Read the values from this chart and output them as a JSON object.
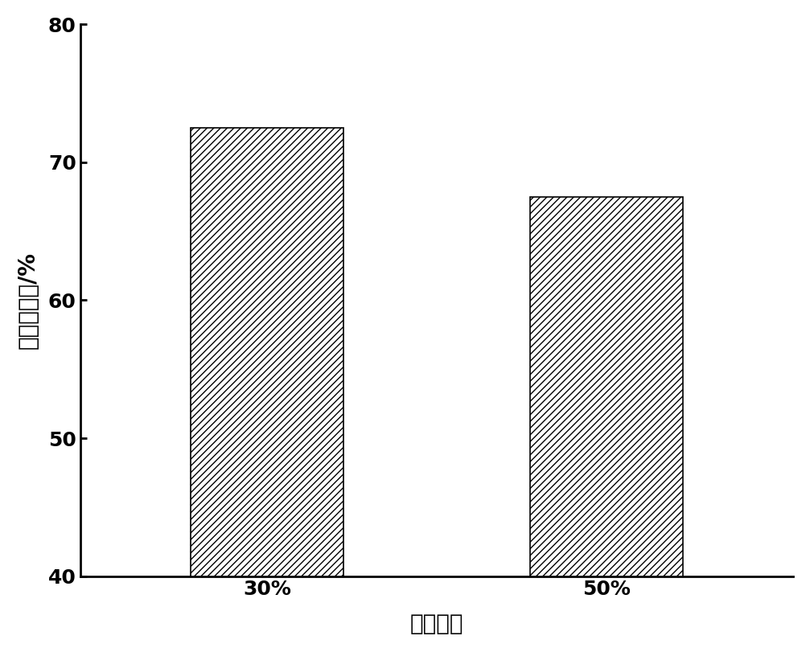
{
  "categories": [
    "30%",
    "50%"
  ],
  "values": [
    72.5,
    67.5
  ],
  "ylabel": "麦芒糖得率/%",
  "xlabel": "底物浓度",
  "ylim": [
    40,
    80
  ],
  "yticks": [
    40,
    50,
    60,
    70,
    80
  ],
  "bar_width": 0.45,
  "ylabel_fontsize": 20,
  "xlabel_fontsize": 20,
  "tick_fontsize": 18,
  "figsize": [
    10.07,
    8.11
  ],
  "dpi": 100,
  "background_color": "#ffffff",
  "bar_positions": [
    1,
    2
  ],
  "xlim": [
    0.45,
    2.55
  ]
}
